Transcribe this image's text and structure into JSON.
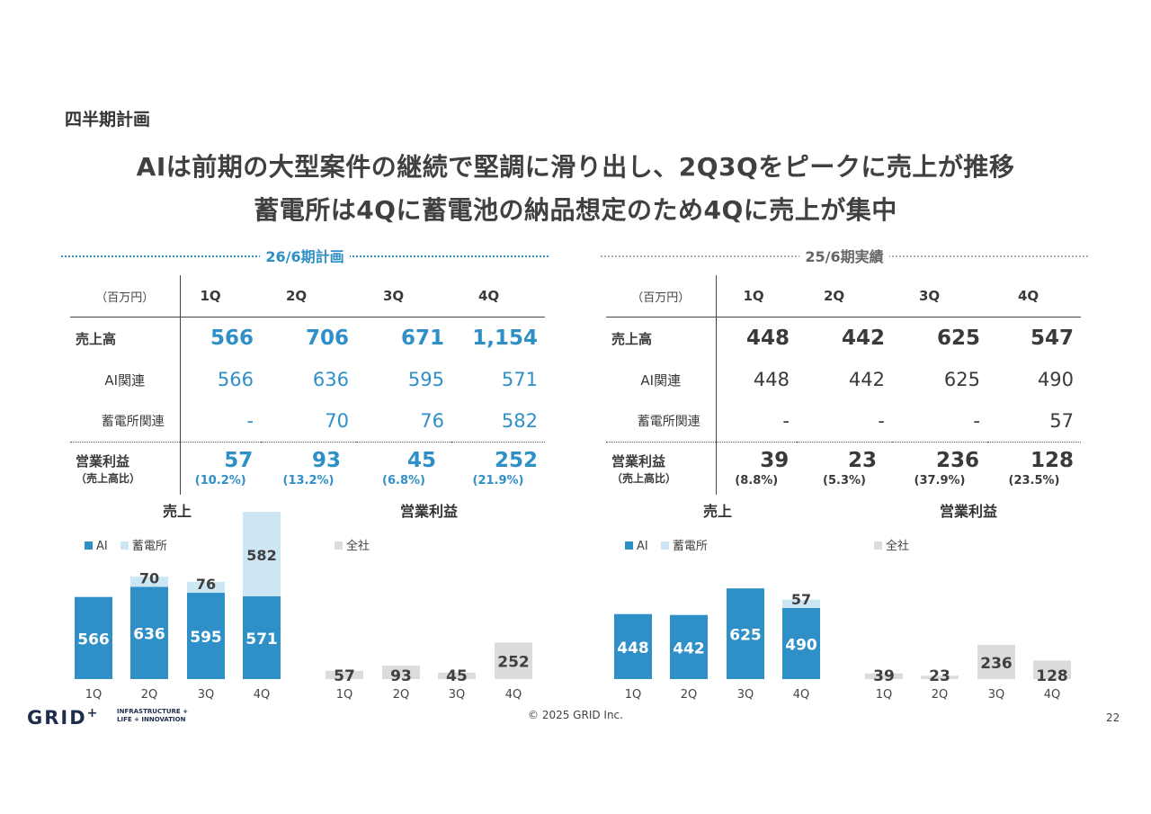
{
  "section": "四半期計画",
  "headline": {
    "line1": "AIは前期の大型案件の継続で堅調に滑り出し、2Q3Qをピークに売上が推移",
    "line2": "蓄電所は4Qに蓄電池の納品想定のため4Qに売上が集中"
  },
  "colors": {
    "ai": "#2f8fc7",
    "storage": "#cde6f4",
    "total": "#dcdcdc",
    "accent": "#2f8fc7"
  },
  "plan": {
    "title": "26/6期計画",
    "unit": "（百万円）",
    "quarters": [
      "1Q",
      "2Q",
      "3Q",
      "4Q"
    ],
    "sales_label": "売上高",
    "sales": [
      "566",
      "706",
      "671",
      "1,154"
    ],
    "ai_label": "AI関連",
    "ai": [
      "566",
      "636",
      "595",
      "571"
    ],
    "storage_label": "蓄電所関連",
    "storage": [
      "-",
      "70",
      "76",
      "582"
    ],
    "op_label": "営業利益",
    "op_sub": "（売上高比）",
    "op": [
      "57",
      "93",
      "45",
      "252"
    ],
    "op_pct": [
      "(10.2%)",
      "(13.2%)",
      "(6.8%)",
      "(21.9%)"
    ]
  },
  "actual": {
    "title": "25/6期実績",
    "unit": "（百万円）",
    "quarters": [
      "1Q",
      "2Q",
      "3Q",
      "4Q"
    ],
    "sales_label": "売上高",
    "sales": [
      "448",
      "442",
      "625",
      "547"
    ],
    "ai_label": "AI関連",
    "ai": [
      "448",
      "442",
      "625",
      "490"
    ],
    "storage_label": "蓄電所関連",
    "storage": [
      "-",
      "-",
      "-",
      "57"
    ],
    "op_label": "営業利益",
    "op_sub": "（売上高比）",
    "op": [
      "39",
      "23",
      "236",
      "128"
    ],
    "op_pct": [
      "(8.8%)",
      "(5.3%)",
      "(37.9%)",
      "(23.5%)"
    ]
  },
  "legend": {
    "ai": "AI",
    "storage": "蓄電所",
    "total": "全社"
  },
  "chart_titles": {
    "sales": "売上",
    "op": "営業利益"
  },
  "chart_data": [
    {
      "type": "bar",
      "stacked": true,
      "title": "売上",
      "group": "26/6期計画",
      "categories": [
        "1Q",
        "2Q",
        "3Q",
        "4Q"
      ],
      "series": [
        {
          "name": "AI",
          "values": [
            566,
            636,
            595,
            571
          ]
        },
        {
          "name": "蓄電所",
          "values": [
            0,
            70,
            76,
            582
          ]
        }
      ],
      "legend": "top-left",
      "grid": false
    },
    {
      "type": "bar",
      "title": "営業利益",
      "group": "26/6期計画",
      "categories": [
        "1Q",
        "2Q",
        "3Q",
        "4Q"
      ],
      "series": [
        {
          "name": "全社",
          "values": [
            57,
            93,
            45,
            252
          ]
        }
      ],
      "legend": "top-left",
      "grid": false
    },
    {
      "type": "bar",
      "stacked": true,
      "title": "売上",
      "group": "25/6期実績",
      "categories": [
        "1Q",
        "2Q",
        "3Q",
        "4Q"
      ],
      "series": [
        {
          "name": "AI",
          "values": [
            448,
            442,
            625,
            490
          ]
        },
        {
          "name": "蓄電所",
          "values": [
            0,
            0,
            0,
            57
          ]
        }
      ],
      "legend": "top-left",
      "grid": false
    },
    {
      "type": "bar",
      "title": "営業利益",
      "group": "25/6期実績",
      "categories": [
        "1Q",
        "2Q",
        "3Q",
        "4Q"
      ],
      "series": [
        {
          "name": "全社",
          "values": [
            39,
            23,
            236,
            128
          ]
        }
      ],
      "legend": "top-left",
      "grid": false
    }
  ],
  "footer": {
    "logo": "GRID",
    "logo_plus": "+",
    "tagline1": "INFRASTRUCTURE +",
    "tagline2": "LIFE + INNOVATION",
    "copyright": "© 2025 GRID Inc.",
    "page": "22"
  }
}
